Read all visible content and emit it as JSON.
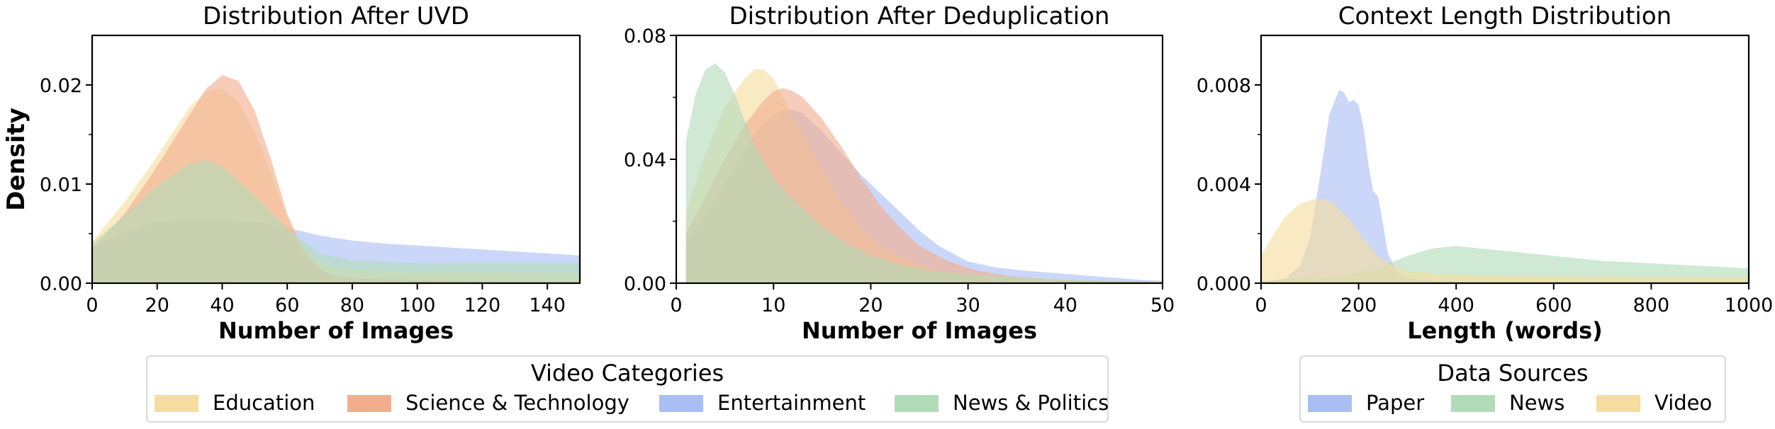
{
  "chart_data": [
    {
      "type": "area",
      "title": "Distribution After UVD",
      "xlabel": "Number of Images",
      "ylabel": "Density",
      "xlim": [
        0,
        150
      ],
      "ylim": [
        0,
        0.025
      ],
      "xticks": [
        0,
        20,
        40,
        60,
        80,
        100,
        120,
        140
      ],
      "yticks": [
        "0.00",
        "0.01",
        "0.02"
      ],
      "series": [
        {
          "name": "Entertainment",
          "color": "#a9bff4",
          "x": [
            0,
            10,
            20,
            30,
            40,
            50,
            60,
            70,
            80,
            90,
            100,
            110,
            120,
            130,
            140,
            150
          ],
          "y": [
            0.0036,
            0.0052,
            0.0062,
            0.0066,
            0.0065,
            0.0062,
            0.0056,
            0.0048,
            0.0043,
            0.004,
            0.0038,
            0.0036,
            0.0034,
            0.0032,
            0.003,
            0.0028
          ]
        },
        {
          "name": "Education",
          "color": "#f5dd9f",
          "x": [
            0,
            10,
            20,
            30,
            35,
            40,
            45,
            50,
            55,
            60,
            65,
            70,
            75,
            80,
            90,
            100,
            120,
            150
          ],
          "y": [
            0.0042,
            0.0082,
            0.0128,
            0.0178,
            0.0193,
            0.0196,
            0.0183,
            0.0153,
            0.011,
            0.0066,
            0.0036,
            0.0021,
            0.0016,
            0.0014,
            0.0013,
            0.0012,
            0.0011,
            0.001
          ]
        },
        {
          "name": "Science & Technology",
          "color": "#f2ad8e",
          "x": [
            0,
            10,
            20,
            30,
            35,
            40,
            45,
            50,
            55,
            60,
            65,
            70,
            75,
            80,
            90,
            100,
            120,
            150
          ],
          "y": [
            0.0035,
            0.007,
            0.0118,
            0.017,
            0.0196,
            0.021,
            0.0204,
            0.0174,
            0.0125,
            0.007,
            0.0032,
            0.0014,
            0.0007,
            0.0005,
            0.0004,
            0.0003,
            0.0002,
            0.0001
          ]
        },
        {
          "name": "News & Politics",
          "color": "#b2dbba",
          "x": [
            0,
            10,
            20,
            30,
            35,
            40,
            50,
            60,
            70,
            80,
            100,
            120,
            150
          ],
          "y": [
            0.004,
            0.0068,
            0.0098,
            0.0121,
            0.0124,
            0.0118,
            0.0088,
            0.0055,
            0.003,
            0.0023,
            0.002,
            0.002,
            0.002
          ]
        }
      ]
    },
    {
      "type": "area",
      "title": "Distribution After Deduplication",
      "xlabel": "Number of Images",
      "ylabel": "",
      "xlim": [
        0,
        50
      ],
      "ylim": [
        0,
        0.08
      ],
      "xticks": [
        0,
        10,
        20,
        30,
        40,
        50
      ],
      "yticks": [
        "0.00",
        "0.04",
        "0.08"
      ],
      "series": [
        {
          "name": "Entertainment",
          "color": "#a9bff4",
          "x": [
            1,
            3,
            5,
            7,
            9,
            11,
            12,
            13,
            15,
            17,
            19,
            21,
            23,
            25,
            27,
            30,
            33,
            36,
            40,
            44,
            48,
            50
          ],
          "y": [
            0.013,
            0.022,
            0.032,
            0.043,
            0.052,
            0.056,
            0.056,
            0.055,
            0.049,
            0.042,
            0.035,
            0.029,
            0.023,
            0.017,
            0.012,
            0.007,
            0.005,
            0.004,
            0.003,
            0.002,
            0.001,
            0.0008
          ]
        },
        {
          "name": "Education",
          "color": "#f5dd9f",
          "x": [
            1,
            3,
            5,
            7,
            8,
            9,
            10,
            11,
            13,
            15,
            17,
            19,
            21,
            24,
            27,
            30,
            35,
            40,
            50
          ],
          "y": [
            0.023,
            0.042,
            0.057,
            0.066,
            0.069,
            0.069,
            0.066,
            0.06,
            0.048,
            0.036,
            0.026,
            0.018,
            0.012,
            0.007,
            0.004,
            0.003,
            0.002,
            0.001,
            0.0005
          ]
        },
        {
          "name": "Science & Technology",
          "color": "#f2ad8e",
          "x": [
            1,
            3,
            5,
            7,
            9,
            10,
            11,
            12,
            13,
            15,
            17,
            19,
            21,
            23,
            25,
            28,
            31,
            35,
            40,
            50
          ],
          "y": [
            0.016,
            0.028,
            0.04,
            0.051,
            0.059,
            0.062,
            0.063,
            0.062,
            0.06,
            0.053,
            0.044,
            0.034,
            0.025,
            0.018,
            0.012,
            0.007,
            0.004,
            0.002,
            0.001,
            0.0005
          ]
        },
        {
          "name": "News & Politics",
          "color": "#b2dbba",
          "x": [
            1,
            2,
            3,
            4,
            5,
            6,
            7,
            8,
            10,
            12,
            14,
            16,
            18,
            20,
            23,
            26,
            30,
            35,
            40,
            50
          ],
          "y": [
            0.046,
            0.061,
            0.069,
            0.071,
            0.068,
            0.061,
            0.053,
            0.045,
            0.034,
            0.027,
            0.021,
            0.016,
            0.012,
            0.009,
            0.006,
            0.004,
            0.003,
            0.002,
            0.001,
            0.0005
          ]
        }
      ]
    },
    {
      "type": "area",
      "title": "Context Length Distribution",
      "xlabel": "Length (words)",
      "ylabel": "",
      "xlim": [
        0,
        1000
      ],
      "ylim": [
        0,
        0.01
      ],
      "xticks": [
        0,
        200,
        400,
        600,
        800,
        1000
      ],
      "yticks": [
        "0.000",
        "0.004",
        "0.008"
      ],
      "series": [
        {
          "name": "Paper",
          "color": "#a9bff4",
          "x": [
            0,
            50,
            80,
            100,
            120,
            140,
            160,
            170,
            180,
            190,
            200,
            210,
            220,
            230,
            240,
            250,
            260,
            280,
            300,
            350,
            400,
            500,
            1000
          ],
          "y": [
            2e-05,
            0.0002,
            0.0007,
            0.0018,
            0.0042,
            0.0068,
            0.0078,
            0.0077,
            0.0073,
            0.0074,
            0.0072,
            0.0063,
            0.0048,
            0.0037,
            0.0035,
            0.0024,
            0.0012,
            0.0004,
            0.0002,
            0.0001,
            5e-05,
            2e-05,
            1e-05
          ]
        },
        {
          "name": "News",
          "color": "#b2dbba",
          "x": [
            0,
            100,
            200,
            250,
            300,
            350,
            400,
            450,
            500,
            600,
            700,
            800,
            900,
            1000
          ],
          "y": [
            0.0001,
            0.0002,
            0.0004,
            0.0007,
            0.0011,
            0.0014,
            0.0015,
            0.0014,
            0.0013,
            0.0011,
            0.0009,
            0.0008,
            0.0007,
            0.0006
          ]
        },
        {
          "name": "Video",
          "color": "#f5dd9f",
          "x": [
            0,
            20,
            50,
            80,
            110,
            130,
            150,
            180,
            210,
            240,
            270,
            300,
            350,
            400,
            500,
            600,
            700,
            800,
            900,
            1000
          ],
          "y": [
            0.0011,
            0.0018,
            0.0027,
            0.0032,
            0.0034,
            0.0034,
            0.0032,
            0.0026,
            0.0018,
            0.0011,
            0.0007,
            0.0005,
            0.0004,
            0.00035,
            0.0003,
            0.00028,
            0.00026,
            0.00025,
            0.00024,
            0.00023
          ]
        }
      ]
    }
  ],
  "legends": [
    {
      "title": "Video Categories",
      "items": [
        {
          "label": "Education",
          "color": "#f5dd9f"
        },
        {
          "label": "Science & Technology",
          "color": "#f2ad8e"
        },
        {
          "label": "Entertainment",
          "color": "#a9bff4"
        },
        {
          "label": "News & Politics",
          "color": "#b2dbba"
        }
      ]
    },
    {
      "title": "Data Sources",
      "items": [
        {
          "label": "Paper",
          "color": "#a9bff4"
        },
        {
          "label": "News",
          "color": "#b2dbba"
        },
        {
          "label": "Video",
          "color": "#f5dd9f"
        }
      ]
    }
  ]
}
